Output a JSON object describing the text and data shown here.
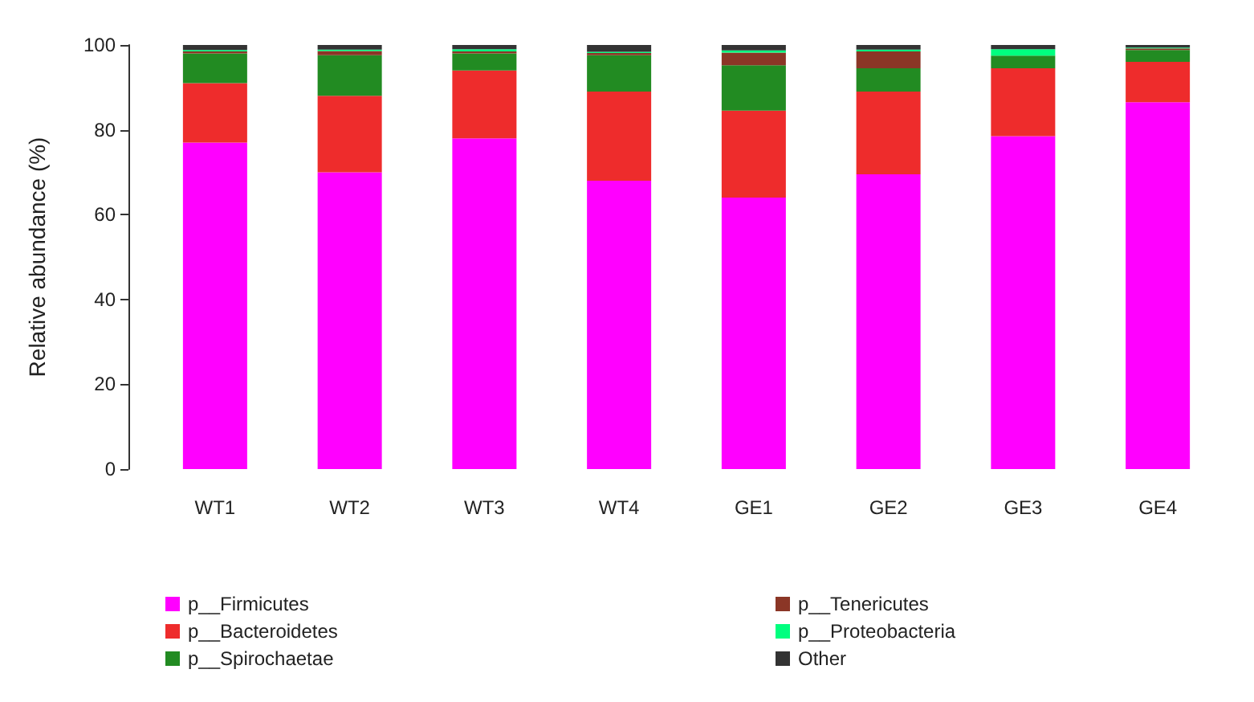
{
  "chart_data": {
    "type": "bar",
    "stacked": true,
    "ylabel": "Relative abundance (%)",
    "categories": [
      "WT1",
      "WT2",
      "WT3",
      "WT4",
      "GE1",
      "GE2",
      "GE3",
      "GE4"
    ],
    "series": [
      {
        "name": "p__Firmicutes",
        "color": "#ff00ff",
        "values": [
          77,
          70,
          78,
          68,
          64,
          69.5,
          78.5,
          86.5
        ]
      },
      {
        "name": "p__Bacteroidetes",
        "color": "#ee2c2c",
        "values": [
          14,
          18,
          16,
          21,
          20.5,
          19.5,
          16,
          9.5
        ]
      },
      {
        "name": "p__Spirochaetae",
        "color": "#228b22",
        "values": [
          7,
          9.6,
          4,
          8.6,
          10.7,
          5.5,
          3,
          2.8
        ]
      },
      {
        "name": "p__Tenericutes",
        "color": "#8b3626",
        "values": [
          0.5,
          1,
          0.5,
          0.5,
          3,
          4,
          null,
          0.4
        ]
      },
      {
        "name": "p__Proteobacteria",
        "color": "#00ff7f",
        "values": [
          0.3,
          0.3,
          0.5,
          0.3,
          0.5,
          0.4,
          1.5,
          0.2
        ]
      },
      {
        "name": "Other",
        "color": "#333333",
        "values": [
          1.2,
          1.1,
          1,
          1.6,
          1.3,
          1.1,
          1,
          0.6
        ]
      }
    ],
    "ylim": [
      0,
      100
    ],
    "yticks": [
      0,
      20,
      40,
      60,
      80,
      100
    ],
    "grid": false,
    "legend": "bottom"
  }
}
